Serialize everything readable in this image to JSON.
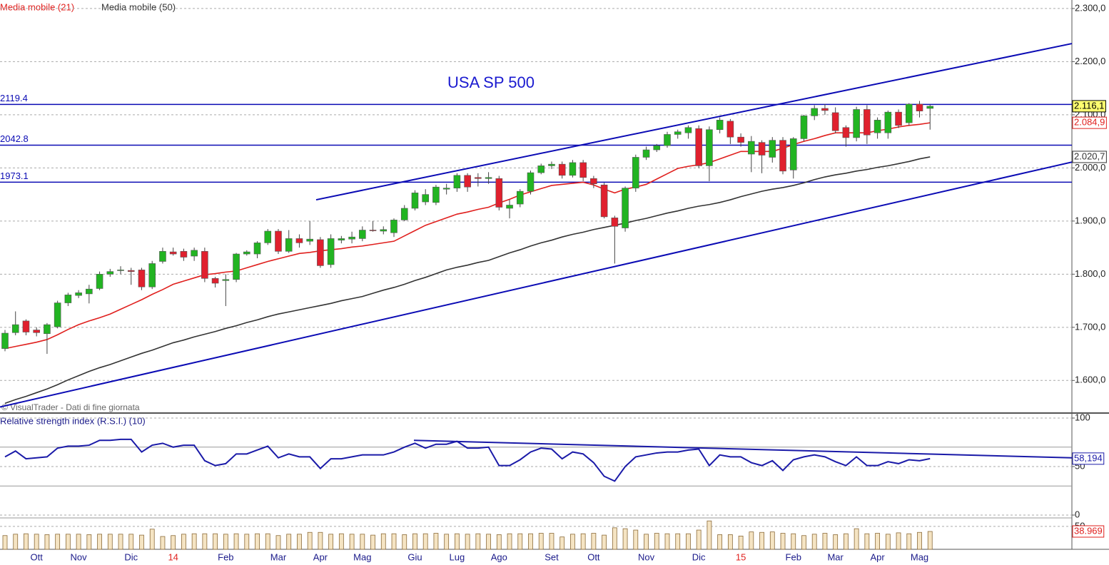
{
  "chart_data": [
    {
      "type": "candlestick",
      "title": "USA SP 500",
      "note": "© VisualTrader - Dati di fine giornata",
      "categories": [
        null,
        null,
        null,
        "Ott",
        null,
        null,
        null,
        "Nov",
        null,
        null,
        null,
        null,
        "Dic",
        null,
        null,
        null,
        "14",
        null,
        null,
        null,
        null,
        "Feb",
        null,
        null,
        null,
        null,
        "Mar",
        null,
        null,
        null,
        "Apr",
        null,
        null,
        null,
        "Mag",
        null,
        null,
        null,
        null,
        "Giu",
        null,
        null,
        null,
        "Lug",
        null,
        null,
        null,
        "Ago",
        null,
        null,
        null,
        null,
        "Set",
        null,
        null,
        null,
        "Ott",
        null,
        null,
        null,
        null,
        "Nov",
        null,
        null,
        null,
        null,
        "Dic",
        null,
        null,
        null,
        "15",
        null,
        null,
        null,
        null,
        "Feb",
        null,
        null,
        null,
        "Mar",
        null,
        null,
        null,
        "Apr",
        null,
        null,
        null,
        "Mag",
        null
      ],
      "open": [
        1660,
        1690,
        1712,
        1695,
        1688,
        1701,
        1746,
        1760,
        1763,
        1773,
        1800,
        1808,
        1807,
        1808,
        1776,
        1824,
        1842,
        1843,
        1834,
        1843,
        1792,
        1788,
        1790,
        1838,
        1838,
        1859,
        1881,
        1843,
        1867,
        1862,
        1865,
        1818,
        1864,
        1866,
        1867,
        1883,
        1881,
        1878,
        1902,
        1924,
        1936,
        1935,
        1960,
        1962,
        1986,
        1982,
        1980,
        1980,
        1924,
        1932,
        1956,
        1991,
        2004,
        2007,
        1986,
        2010,
        1980,
        1968,
        1906,
        1887,
        1962,
        2020,
        2034,
        2042,
        2063,
        2066,
        2074,
        2004,
        2072,
        2088,
        2058,
        2026,
        2048,
        2020,
        2052,
        1996,
        2055,
        2098,
        2112,
        2104,
        2076,
        2057,
        2110,
        2066,
        2066,
        2105,
        2085,
        2120,
        2112
      ],
      "high": [
        1695,
        1730,
        1715,
        1700,
        1708,
        1750,
        1765,
        1770,
        1780,
        1805,
        1810,
        1815,
        1812,
        1812,
        1825,
        1850,
        1850,
        1848,
        1850,
        1850,
        1795,
        1800,
        1840,
        1845,
        1862,
        1885,
        1885,
        1883,
        1875,
        1900,
        1870,
        1875,
        1872,
        1880,
        1890,
        1900,
        1890,
        1905,
        1930,
        1958,
        1960,
        1968,
        1970,
        1990,
        1990,
        1990,
        1992,
        1985,
        1940,
        1960,
        1995,
        2008,
        2012,
        2012,
        2015,
        2015,
        1985,
        1972,
        1910,
        1965,
        2025,
        2040,
        2045,
        2068,
        2072,
        2080,
        2080,
        2078,
        2095,
        2092,
        2065,
        2060,
        2052,
        2058,
        2058,
        2058,
        2100,
        2118,
        2120,
        2114,
        2080,
        2115,
        2118,
        2095,
        2108,
        2110,
        2122,
        2126,
        2119
      ],
      "low": [
        1655,
        1685,
        1685,
        1683,
        1650,
        1698,
        1740,
        1755,
        1745,
        1770,
        1795,
        1800,
        1780,
        1770,
        1772,
        1820,
        1835,
        1825,
        1825,
        1785,
        1775,
        1740,
        1785,
        1835,
        1830,
        1855,
        1838,
        1840,
        1850,
        1855,
        1812,
        1812,
        1858,
        1858,
        1862,
        1880,
        1875,
        1870,
        1900,
        1920,
        1930,
        1930,
        1950,
        1955,
        1955,
        1965,
        1970,
        1920,
        1905,
        1926,
        1950,
        1988,
        1998,
        1980,
        1982,
        1975,
        1962,
        1905,
        1820,
        1880,
        1955,
        2015,
        2030,
        2038,
        2055,
        2055,
        2000,
        1975,
        2065,
        2045,
        2040,
        1992,
        1990,
        2010,
        1988,
        1980,
        2050,
        2090,
        2100,
        2065,
        2040,
        2050,
        2045,
        2055,
        2055,
        2075,
        2080,
        2095,
        2072
      ],
      "close": [
        1689,
        1705,
        1691,
        1690,
        1705,
        1746,
        1761,
        1765,
        1772,
        1800,
        1805,
        1808,
        1805,
        1776,
        1820,
        1843,
        1838,
        1832,
        1845,
        1792,
        1783,
        1790,
        1838,
        1842,
        1859,
        1881,
        1843,
        1867,
        1859,
        1866,
        1816,
        1867,
        1867,
        1870,
        1883,
        1882,
        1884,
        1902,
        1924,
        1953,
        1950,
        1964,
        1962,
        1986,
        1964,
        1980,
        1982,
        1926,
        1930,
        1956,
        1991,
        2004,
        2007,
        1986,
        2010,
        1982,
        1970,
        1908,
        1890,
        1962,
        2020,
        2034,
        2042,
        2063,
        2068,
        2076,
        2004,
        2072,
        2090,
        2058,
        2048,
        2050,
        2024,
        2052,
        1994,
        2055,
        2098,
        2112,
        2108,
        2070,
        2057,
        2110,
        2062,
        2090,
        2105,
        2080,
        2120,
        2107,
        2116.1
      ],
      "close_labels": {
        "88": "2.116,1"
      },
      "up_color": "#22b422",
      "down_color": "#e0202e",
      "series": [
        {
          "name": "Media mobile (21)",
          "color": "#e0201e",
          "values": [
            1660,
            1664,
            1668,
            1672,
            1677,
            1686,
            1696,
            1705,
            1712,
            1718,
            1725,
            1734,
            1743,
            1752,
            1762,
            1771,
            1781,
            1787,
            1793,
            1799,
            1801,
            1804,
            1806,
            1812,
            1818,
            1824,
            1829,
            1834,
            1839,
            1841,
            1844,
            1846,
            1848,
            1851,
            1853,
            1856,
            1859,
            1862,
            1872,
            1882,
            1892,
            1899,
            1906,
            1913,
            1917,
            1922,
            1926,
            1934,
            1941,
            1949,
            1955,
            1961,
            1967,
            1969,
            1971,
            1973,
            1968,
            1960,
            1953,
            1960,
            1964,
            1969,
            1979,
            1989,
            1999,
            2003,
            2006,
            2010,
            2017,
            2024,
            2031,
            2031,
            2031,
            2031,
            2037,
            2044,
            2050,
            2055,
            2061,
            2066,
            2066,
            2066,
            2066,
            2070,
            2073,
            2077,
            2080,
            2082,
            2084.9
          ],
          "value_labels": {
            "88": "2.084,9"
          }
        },
        {
          "name": "Media mobile (50)",
          "color": "#333333",
          "values": [
            1557,
            1564,
            1570,
            1577,
            1584,
            1592,
            1601,
            1609,
            1617,
            1624,
            1630,
            1637,
            1644,
            1651,
            1657,
            1664,
            1671,
            1676,
            1682,
            1687,
            1692,
            1698,
            1703,
            1709,
            1714,
            1720,
            1725,
            1729,
            1733,
            1737,
            1741,
            1745,
            1750,
            1754,
            1758,
            1764,
            1770,
            1775,
            1781,
            1788,
            1794,
            1801,
            1808,
            1813,
            1817,
            1822,
            1826,
            1833,
            1840,
            1846,
            1853,
            1859,
            1864,
            1870,
            1875,
            1879,
            1884,
            1888,
            1892,
            1896,
            1901,
            1905,
            1910,
            1915,
            1919,
            1924,
            1928,
            1931,
            1935,
            1940,
            1946,
            1951,
            1956,
            1960,
            1963,
            1967,
            1972,
            1978,
            1983,
            1987,
            1990,
            1994,
            1997,
            2001,
            2004,
            2008,
            2012,
            2017,
            2020.7
          ],
          "value_labels": {
            "88": "2.020,7"
          }
        }
      ],
      "hlines": [
        2119.4,
        2042.8,
        1973.1
      ],
      "line_color": "#0a0ab4",
      "trendlines": [
        {
          "x": [
            29.6,
            101.5
          ],
          "y": [
            1940,
            2234
          ]
        },
        {
          "x": [
            -0.5,
            101.5
          ],
          "y": [
            1550,
            2011
          ]
        }
      ],
      "ylim": [
        1540,
        2316
      ],
      "yticks": [
        {
          "value": 1600,
          "label": "1.600,0"
        },
        {
          "value": 1700,
          "label": "1.700,0"
        },
        {
          "value": 1800,
          "label": "1.800,0"
        },
        {
          "value": 1900,
          "label": "1.900,0"
        },
        {
          "value": 2000,
          "label": "2.000,0"
        },
        {
          "value": 2100,
          "label": "2.100,0"
        },
        {
          "value": 2200,
          "label": "2.200,0"
        },
        {
          "value": 2300,
          "label": "2.300,0"
        }
      ],
      "grid": true
    },
    {
      "type": "line",
      "title": "Relative strength index (R.S.I.) (10)",
      "series": [
        {
          "color": "#1a1aa8",
          "values": [
            60,
            66,
            58,
            59,
            60,
            69,
            71,
            71,
            72,
            77,
            77,
            78,
            78,
            65,
            72,
            74,
            70,
            72,
            72,
            56,
            51,
            53,
            63,
            63,
            67,
            71,
            59,
            63,
            60,
            60,
            48,
            58,
            58,
            60,
            62,
            62,
            62,
            65,
            70,
            74,
            69,
            73,
            73,
            76,
            69,
            69,
            70,
            51,
            51,
            57,
            65,
            69,
            68,
            58,
            65,
            63,
            54,
            40,
            35,
            50,
            60,
            62,
            64,
            65,
            65,
            67,
            68,
            51,
            62,
            60,
            60,
            54,
            51,
            56,
            46,
            57,
            60,
            62,
            60,
            55,
            51,
            60,
            51,
            51,
            55,
            53,
            57,
            56,
            58.194
          ],
          "value_labels": {
            "88": "58,194"
          }
        }
      ],
      "levels": [
        70,
        30
      ],
      "trendlines": [
        {
          "x": [
            38.9,
            101.5
          ],
          "y": [
            77,
            59
          ]
        }
      ],
      "ylim": [
        -2.2,
        104.4
      ],
      "yticks": [
        0,
        50,
        100
      ],
      "grid": true
    },
    {
      "type": "bar",
      "color": "#f5e4c3",
      "edge_color": "#8b6b3a",
      "values": [
        30,
        33,
        34,
        33,
        32,
        33,
        33,
        33,
        32,
        33,
        33,
        33,
        33,
        31,
        44,
        28,
        30,
        33,
        34,
        34,
        34,
        33,
        34,
        33,
        34,
        34,
        30,
        33,
        33,
        37,
        37,
        33,
        34,
        33,
        33,
        31,
        34,
        34,
        32,
        34,
        34,
        35,
        33,
        34,
        33,
        34,
        33,
        32,
        34,
        34,
        34,
        35,
        35,
        27,
        33,
        34,
        35,
        31,
        47,
        45,
        42,
        33,
        35,
        34,
        34,
        34,
        42,
        62,
        32,
        32,
        29,
        38,
        37,
        38,
        35,
        34,
        30,
        33,
        35,
        32,
        34,
        45,
        34,
        35,
        33,
        36,
        34,
        37,
        38.969
      ],
      "ylim": [
        0,
        67
      ],
      "yticks": [
        50
      ],
      "grid": true
    }
  ]
}
